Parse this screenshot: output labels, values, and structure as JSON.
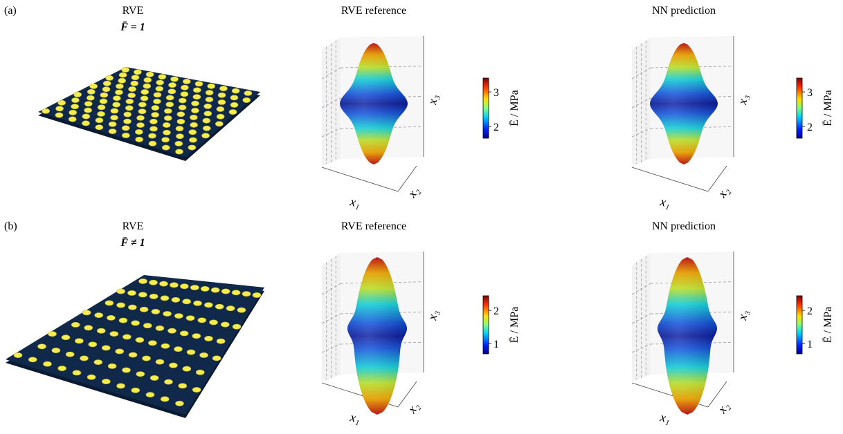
{
  "rows": [
    {
      "label": "(a)",
      "rve": {
        "title": "RVE",
        "condition": "F̄ = 1"
      },
      "panels": [
        {
          "title": "RVE reference",
          "axes": [
            "x₁",
            "x₂",
            "x₃"
          ]
        },
        {
          "title": "NN prediction",
          "axes": [
            "x₁",
            "x₂",
            "x₃"
          ]
        }
      ],
      "colorbar": {
        "label": "Ē / MPa",
        "range": [
          1.66,
          3.4
        ],
        "ticks": [
          2,
          3
        ]
      }
    },
    {
      "label": "(b)",
      "rve": {
        "title": "RVE",
        "condition": "F̄ ≠ 1"
      },
      "panels": [
        {
          "title": "RVE reference",
          "axes": [
            "x₁",
            "x₂",
            "x₃"
          ]
        },
        {
          "title": "NN prediction",
          "axes": [
            "x₁",
            "x₂",
            "x₃"
          ]
        }
      ],
      "colorbar": {
        "label": "Ē / MPa",
        "range": [
          0.69,
          2.44
        ],
        "ticks": [
          1,
          2
        ]
      }
    }
  ]
}
